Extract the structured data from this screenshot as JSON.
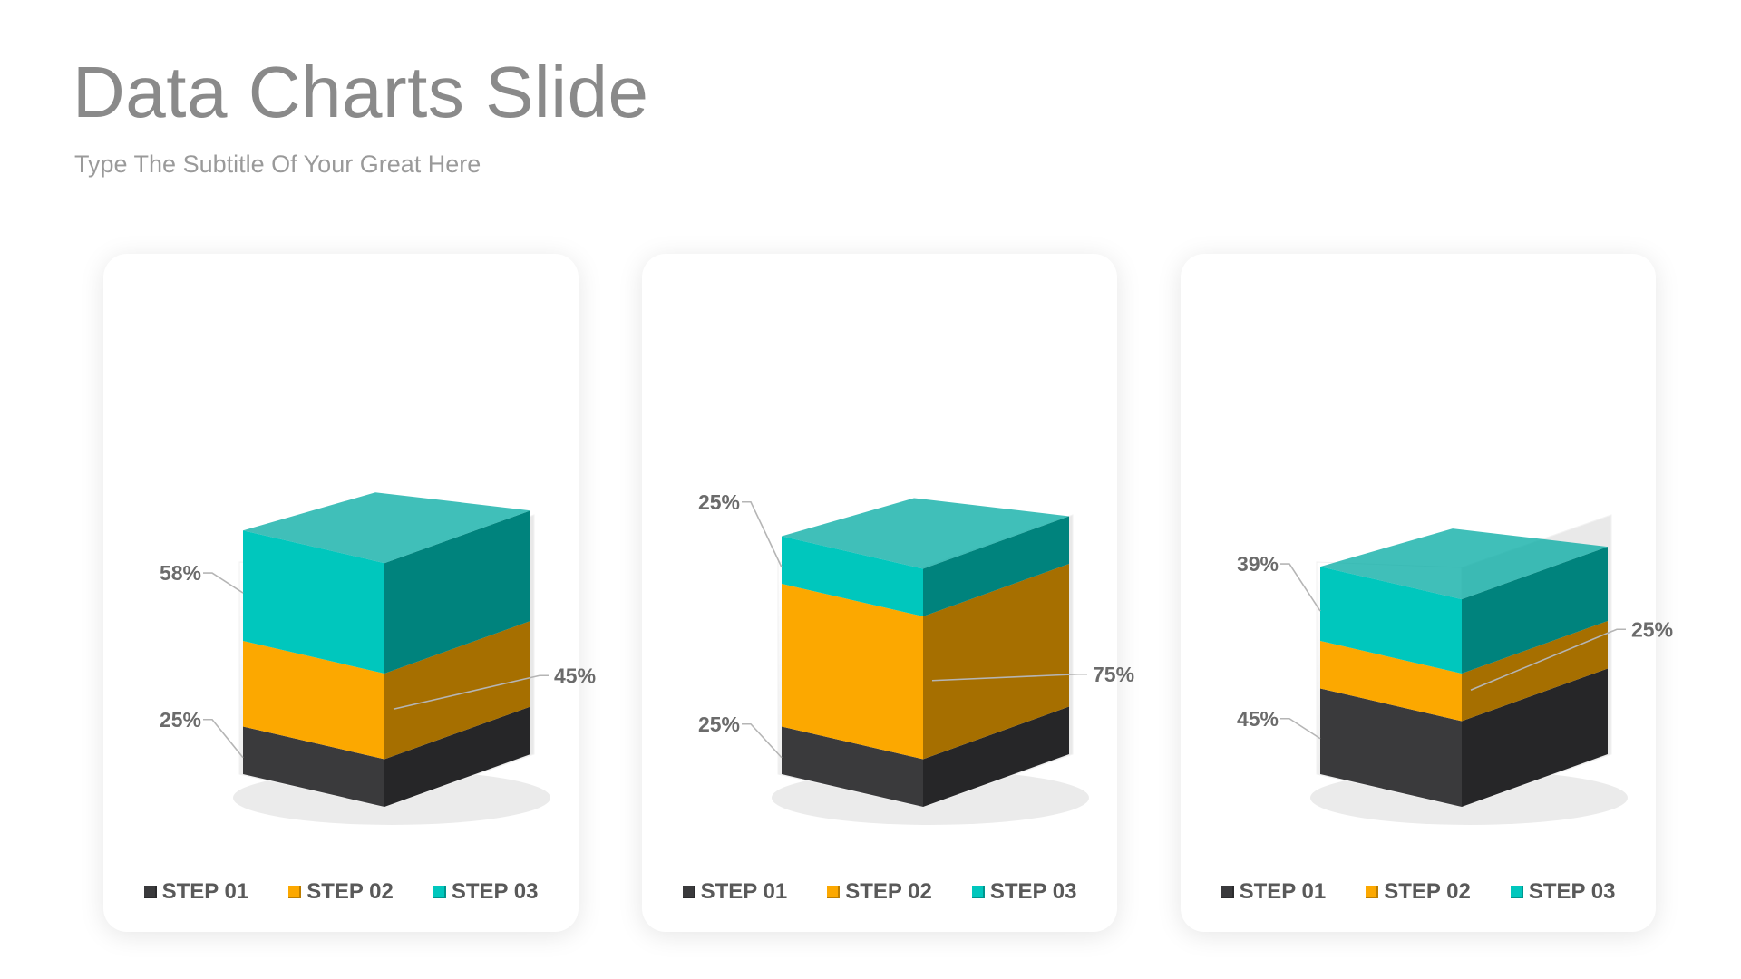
{
  "title": "Data Charts Slide",
  "subtitle": "Type The Subtitle Of Your Great Here",
  "legend": [
    "STEP 01",
    "STEP 02",
    "STEP 03"
  ],
  "colors": {
    "step01": "#3a3a3c",
    "step02": "#fca800",
    "step03": "#00c7bd",
    "glass": "#e9e9e9",
    "label": "#6b6b6b",
    "leader": "#b5b5b5"
  },
  "chart_data": [
    {
      "type": "bar",
      "categories": [
        "STEP 01",
        "STEP 02",
        "STEP 03"
      ],
      "values": [
        25,
        45,
        58
      ],
      "labels": [
        "25%",
        "45%",
        "58%"
      ]
    },
    {
      "type": "bar",
      "categories": [
        "STEP 01",
        "STEP 02",
        "STEP 03"
      ],
      "values": [
        25,
        75,
        25
      ],
      "labels": [
        "25%",
        "75%",
        "25%"
      ]
    },
    {
      "type": "bar",
      "categories": [
        "STEP 01",
        "STEP 02",
        "STEP 03"
      ],
      "values": [
        45,
        25,
        39
      ],
      "labels": [
        "45%",
        "25%",
        "39%"
      ]
    }
  ]
}
